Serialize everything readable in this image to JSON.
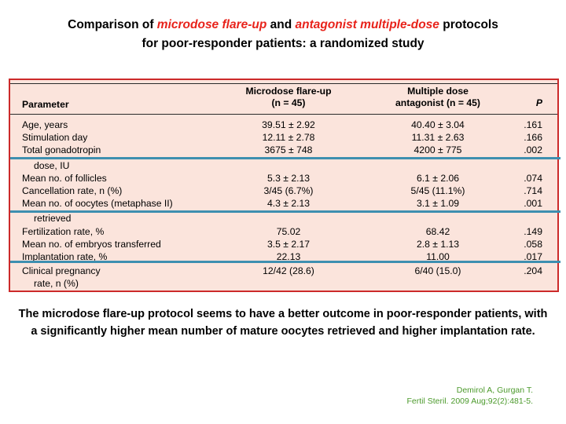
{
  "title": {
    "part1": "Comparison of ",
    "highlight1": "microdose flare-up",
    "part2": " and ",
    "highlight2": "antagonist multiple-dose",
    "part3": " protocols",
    "line2": "for poor-responder patients: a randomized study"
  },
  "table": {
    "headers": {
      "parameter": "Parameter",
      "micro_line1": "Microdose flare-up",
      "micro_line2": "(n = 45)",
      "multi_line1": "Multiple dose",
      "multi_line2": "antagonist (n = 45)",
      "p": "P"
    },
    "rows": [
      {
        "param": "Age, years",
        "cont": "",
        "micro": "39.51 ± 2.92",
        "multi": "40.40 ± 3.04",
        "p": ".161"
      },
      {
        "param": "Stimulation day",
        "cont": "",
        "micro": "12.11 ± 2.78",
        "multi": "11.31 ± 2.63",
        "p": ".166"
      },
      {
        "param": "Total gonadotropin",
        "cont": "dose, IU",
        "micro": "3675 ± 748",
        "multi": "4200 ± 775",
        "p": ".002"
      },
      {
        "param": "Mean no. of follicles",
        "cont": "",
        "micro": "5.3 ± 2.13",
        "multi": "6.1 ± 2.06",
        "p": ".074"
      },
      {
        "param": "Cancellation rate, n (%)",
        "cont": "",
        "micro": "3/45 (6.7%)",
        "multi": "5/45 (11.1%)",
        "p": ".714"
      },
      {
        "param": "Mean no. of oocytes (metaphase II)",
        "cont": "retrieved",
        "micro": "4.3 ± 2.13",
        "multi": "3.1 ± 1.09",
        "p": ".001"
      },
      {
        "param": "Fertilization rate, %",
        "cont": "",
        "micro": "75.02",
        "multi": "68.42",
        "p": ".149"
      },
      {
        "param": "Mean no. of embryos transferred",
        "cont": "",
        "micro": "3.5 ± 2.17",
        "multi": "2.8 ± 1.13",
        "p": ".058"
      },
      {
        "param": "Implantation rate, %",
        "cont": "",
        "micro": "22.13",
        "multi": "11.00",
        "p": ".017"
      },
      {
        "param": "Clinical pregnancy",
        "cont": "rate, n (%)",
        "micro": "12/42 (28.6)",
        "multi": "6/40 (15.0)",
        "p": ".204"
      }
    ]
  },
  "caption": "The microdose flare-up protocol seems to have a better outcome in poor-responder patients, with a significantly higher mean number of mature oocytes retrieved and higher implantation rate.",
  "citation": {
    "line1": "Demirol A, Gurgan T.",
    "line2": "Fertil Steril. 2009 Aug;92(2):481-5."
  },
  "colors": {
    "highlight": "#e8231b",
    "table_background": "#fbe4dc",
    "table_border": "#cc2a2a",
    "underline_blue": "#3e8fb0",
    "citation": "#4c9a2c"
  }
}
